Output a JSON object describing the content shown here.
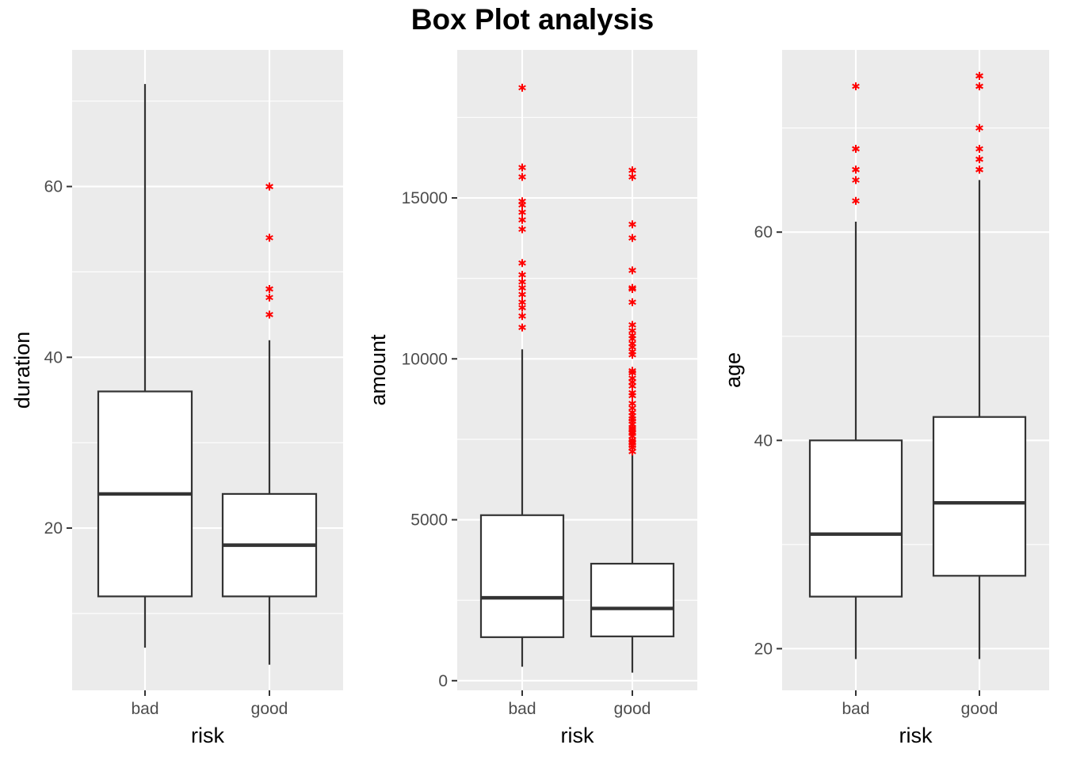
{
  "title": "Box Plot analysis",
  "colors": {
    "panel": "#ebebeb",
    "grid": "#ffffff",
    "box_line": "#333333",
    "outlier": "#ff0000",
    "box_fill": "#ffffff"
  },
  "chart_data": [
    {
      "type": "box",
      "xlabel": "risk",
      "ylabel": "duration",
      "categories": [
        "bad",
        "good"
      ],
      "ylim": [
        1,
        76
      ],
      "yticks": [
        20,
        40,
        60
      ],
      "boxes": [
        {
          "name": "bad",
          "min": 6,
          "q1": 12,
          "median": 24,
          "q3": 36,
          "max": 72,
          "outliers": []
        },
        {
          "name": "good",
          "min": 4,
          "q1": 12,
          "median": 18,
          "q3": 24,
          "max": 42,
          "outliers": [
            45,
            47,
            48,
            48,
            54,
            60,
            60
          ]
        }
      ]
    },
    {
      "type": "box",
      "xlabel": "risk",
      "ylabel": "amount",
      "categories": [
        "bad",
        "good"
      ],
      "ylim": [
        -300,
        19600
      ],
      "yticks": [
        0,
        5000,
        10000,
        15000
      ],
      "ytick_labels": [
        "0",
        "5000",
        "10000",
        "15000"
      ],
      "boxes": [
        {
          "name": "bad",
          "min": 433,
          "q1": 1352,
          "median": 2575,
          "q3": 5142,
          "max": 10297,
          "outliers": [
            10974,
            11328,
            11590,
            11760,
            11998,
            12204,
            12389,
            12612,
            12976,
            14027,
            14318,
            14555,
            14782,
            14896,
            15653,
            15945,
            18424
          ]
        }
      ],
      "boxes_more": [
        {
          "name": "good",
          "min": 250,
          "q1": 1376,
          "median": 2244,
          "q3": 3635,
          "max": 7057,
          "outliers": [
            7119,
            7238,
            7308,
            7393,
            7418,
            7476,
            7596,
            7685,
            7721,
            7814,
            7865,
            7966,
            8065,
            8133,
            8229,
            8335,
            8471,
            8613,
            8858,
            8947,
            9157,
            9277,
            9398,
            9566,
            9629,
            10127,
            10222,
            10366,
            10477,
            10623,
            10722,
            10875,
            11054,
            11760,
            12169,
            12204,
            12749,
            13756,
            14179,
            15653,
            15857
          ]
        }
      ]
    },
    {
      "type": "box",
      "xlabel": "risk",
      "ylabel": "age",
      "categories": [
        "bad",
        "good"
      ],
      "ylim": [
        16,
        77.5
      ],
      "yticks": [
        20,
        40,
        60
      ],
      "boxes": [
        {
          "name": "bad",
          "min": 19,
          "q1": 25,
          "median": 31,
          "q3": 40,
          "max": 61,
          "outliers": [
            63,
            65,
            66,
            66,
            68,
            68,
            74
          ]
        },
        {
          "name": "good",
          "min": 19,
          "q1": 27,
          "median": 34,
          "q3": 42.25,
          "max": 65,
          "outliers": [
            66,
            66,
            67,
            67,
            68,
            70,
            74,
            74,
            75,
            75
          ]
        }
      ]
    }
  ]
}
